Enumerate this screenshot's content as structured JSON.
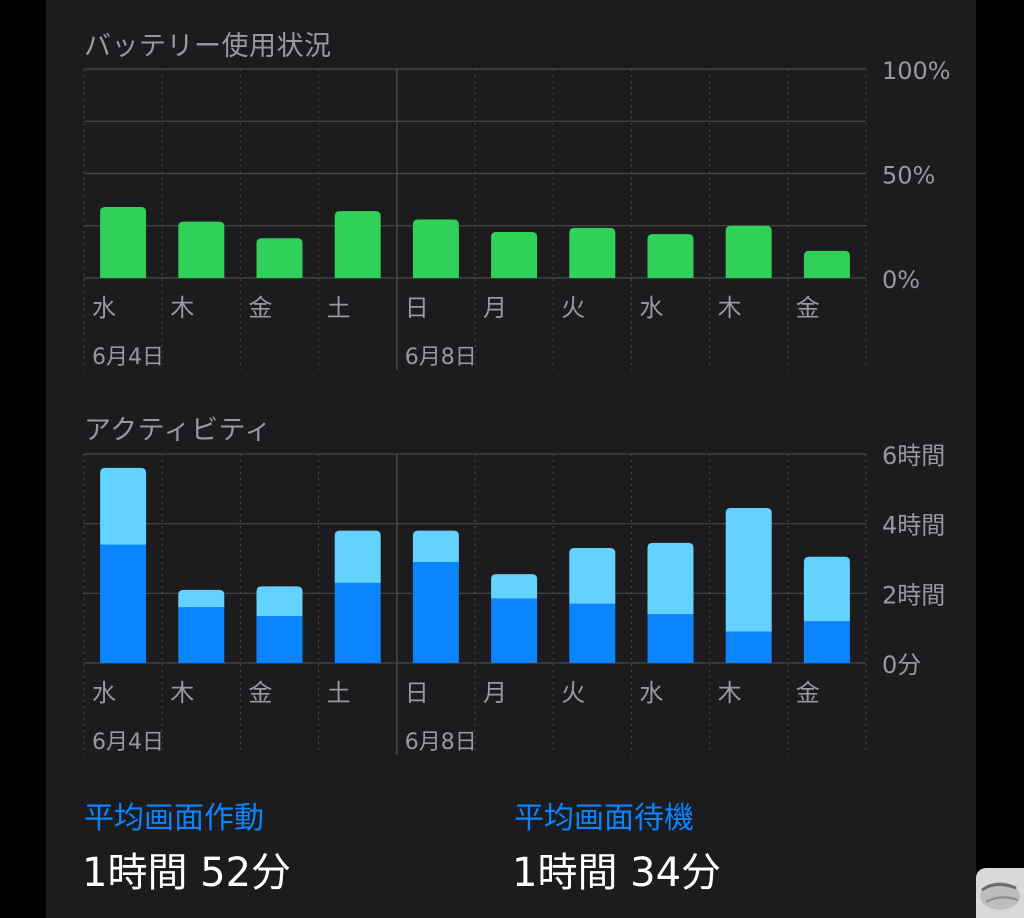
{
  "battery": {
    "title": "バッテリー使用状況"
  },
  "activity": {
    "title": "アクティビティ"
  },
  "summary": {
    "screen_on_label": "平均画面作動",
    "screen_on_value": "1時間 52分",
    "screen_off_label": "平均画面待機",
    "screen_off_value": "1時間 34分"
  },
  "colors": {
    "battery_bar": "#30d158",
    "screen_on": "#0a84ff",
    "screen_off": "#64d2ff",
    "summary_label": "#0a84ff"
  },
  "chart_data": [
    {
      "type": "bar",
      "title": "バッテリー使用状況",
      "categories": [
        "水",
        "木",
        "金",
        "土",
        "日",
        "月",
        "火",
        "水",
        "木",
        "金"
      ],
      "date_labels": [
        {
          "index": 0,
          "text": "6月4日"
        },
        {
          "index": 4,
          "text": "6月8日"
        }
      ],
      "values": [
        34,
        27,
        19,
        32,
        28,
        22,
        24,
        21,
        25,
        13
      ],
      "unit": "%",
      "ylim": [
        0,
        100
      ],
      "yticks": [
        {
          "value": 100,
          "label": "100%"
        },
        {
          "value": 50,
          "label": "50%"
        },
        {
          "value": 0,
          "label": "0%"
        }
      ],
      "grid": true,
      "color": "#30d158"
    },
    {
      "type": "bar",
      "stacked": true,
      "title": "アクティビティ",
      "categories": [
        "水",
        "木",
        "金",
        "土",
        "日",
        "月",
        "火",
        "水",
        "木",
        "金"
      ],
      "date_labels": [
        {
          "index": 0,
          "text": "6月4日"
        },
        {
          "index": 4,
          "text": "6月8日"
        }
      ],
      "unit": "hours",
      "ylim": [
        0,
        6
      ],
      "yticks": [
        {
          "value": 6,
          "label": "6時間"
        },
        {
          "value": 4,
          "label": "4時間"
        },
        {
          "value": 2,
          "label": "2時間"
        },
        {
          "value": 0,
          "label": "0分"
        }
      ],
      "series": [
        {
          "name": "画面作動",
          "values": [
            3.4,
            1.6,
            1.35,
            2.3,
            2.9,
            1.85,
            1.7,
            1.4,
            0.9,
            1.2
          ],
          "color": "#0a84ff"
        },
        {
          "name": "画面待機",
          "values": [
            2.2,
            0.5,
            0.85,
            1.5,
            0.9,
            0.7,
            1.6,
            2.05,
            3.55,
            1.85
          ],
          "color": "#64d2ff"
        }
      ],
      "grid": true
    }
  ]
}
